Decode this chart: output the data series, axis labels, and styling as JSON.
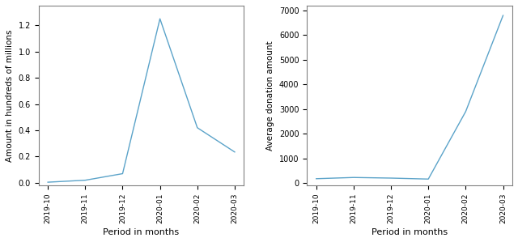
{
  "categories": [
    "2019-10",
    "2019-11",
    "2019-12",
    "2020-01",
    "2020-02",
    "2020-03"
  ],
  "left_values": [
    0.005,
    0.02,
    0.07,
    1.25,
    0.42,
    0.235
  ],
  "right_values": [
    175,
    225,
    200,
    160,
    2900,
    6800
  ],
  "left_ylabel": "Amount in hundreds of millions",
  "right_ylabel": "Average donation amount",
  "xlabel": "Period in months",
  "left_ylim": [
    -0.02,
    1.35
  ],
  "right_ylim": [
    -100,
    7200
  ],
  "right_yticks": [
    0,
    1000,
    2000,
    3000,
    4000,
    5000,
    6000,
    7000
  ],
  "line_color": "#5ba3c9",
  "bg_color": "#ffffff"
}
